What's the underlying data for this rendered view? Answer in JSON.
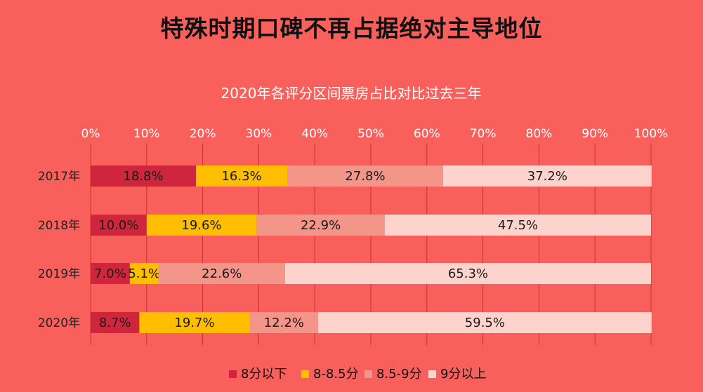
{
  "title": "特殊时期口碑不再占据绝对主导地位",
  "chart_data": {
    "type": "bar",
    "orientation": "horizontal",
    "stacked": true,
    "title": "2020年各评分区间票房占比对比过去三年",
    "categories": [
      "2017年",
      "2018年",
      "2019年",
      "2020年"
    ],
    "x_ticks": [
      "0%",
      "10%",
      "20%",
      "30%",
      "40%",
      "50%",
      "60%",
      "70%",
      "80%",
      "90%",
      "100%"
    ],
    "xlim": [
      0,
      100
    ],
    "legend_position": "bottom",
    "series": [
      {
        "name": "8分以下",
        "color": "#d0263d",
        "values": [
          18.8,
          10.0,
          7.0,
          8.7
        ],
        "labels": [
          "18.8%",
          "10.0%",
          "7.0%",
          "8.7%"
        ]
      },
      {
        "name": "8-8.5分",
        "color": "#ffbf00",
        "values": [
          16.3,
          19.6,
          5.1,
          19.7
        ],
        "labels": [
          "16.3%",
          "19.6%",
          "5.1%",
          "19.7%"
        ]
      },
      {
        "name": "8.5-9分",
        "color": "#f4958a",
        "values": [
          27.8,
          22.9,
          22.6,
          12.2
        ],
        "labels": [
          "27.8%",
          "22.9%",
          "22.6%",
          "12.2%"
        ]
      },
      {
        "name": "9分以上",
        "color": "#fcd4cd",
        "values": [
          37.2,
          47.5,
          65.3,
          59.5
        ],
        "labels": [
          "37.2%",
          "47.5%",
          "65.3%",
          "59.5%"
        ]
      }
    ]
  }
}
